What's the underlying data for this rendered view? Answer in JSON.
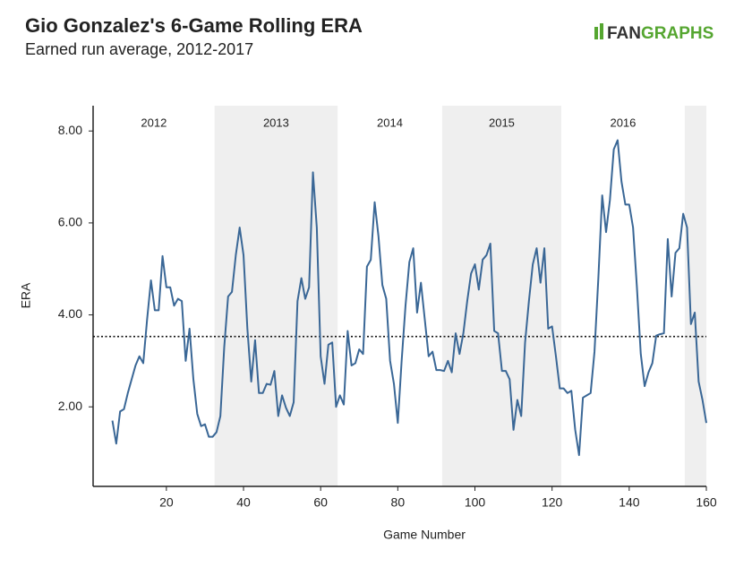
{
  "chart_data": {
    "type": "line",
    "title": "Gio Gonzalez's 6-Game Rolling ERA",
    "subtitle": "Earned run average, 2012-2017",
    "brand": [
      "FAN",
      "GRAPHS"
    ],
    "x_label": "Game Number",
    "y_label": "ERA",
    "color": "#3a6796",
    "xlim": [
      1,
      160
    ],
    "ylim": [
      0.27,
      8.55
    ],
    "xticks": [
      20,
      40,
      60,
      80,
      100,
      120,
      140,
      160
    ],
    "yticks": [
      {
        "value": 2,
        "label": "2.00"
      },
      {
        "value": 4,
        "label": "4.00"
      },
      {
        "value": 6,
        "label": "6.00"
      },
      {
        "value": 8,
        "label": "8.00"
      }
    ],
    "reference_line": 3.53,
    "seasons": [
      {
        "label": "2012",
        "start": 1,
        "end": 32.5,
        "shaded": false
      },
      {
        "label": "2013",
        "start": 32.5,
        "end": 64.4,
        "shaded": true
      },
      {
        "label": "2014",
        "start": 64.4,
        "end": 91.5,
        "shaded": false
      },
      {
        "label": "2015",
        "start": 91.5,
        "end": 122.4,
        "shaded": true
      },
      {
        "label": "2016",
        "start": 122.4,
        "end": 154.4,
        "shaded": false
      },
      {
        "label": null,
        "start": 154.4,
        "end": 160,
        "shaded": true
      }
    ],
    "x": [
      6,
      7,
      8,
      9,
      10,
      11,
      12,
      13,
      14,
      15,
      16,
      17,
      18,
      19,
      20,
      21,
      22,
      23,
      24,
      25,
      26,
      27,
      28,
      29,
      30,
      31,
      32,
      33,
      34,
      35,
      36,
      37,
      38,
      39,
      40,
      41,
      42,
      43,
      44,
      45,
      46,
      47,
      48,
      49,
      50,
      51,
      52,
      53,
      54,
      55,
      56,
      57,
      58,
      59,
      60,
      61,
      62,
      63,
      64,
      65,
      66,
      67,
      68,
      69,
      70,
      71,
      72,
      73,
      74,
      75,
      76,
      77,
      78,
      79,
      80,
      81,
      82,
      83,
      84,
      85,
      86,
      87,
      88,
      89,
      90,
      91,
      92,
      93,
      94,
      95,
      96,
      97,
      98,
      99,
      100,
      101,
      102,
      103,
      104,
      105,
      106,
      107,
      108,
      109,
      110,
      111,
      112,
      113,
      114,
      115,
      116,
      117,
      118,
      119,
      120,
      121,
      122,
      123,
      124,
      125,
      126,
      127,
      128,
      129,
      130,
      131,
      132,
      133,
      134,
      135,
      136,
      137,
      138,
      139,
      140,
      141,
      142,
      143,
      144,
      145,
      146,
      147,
      148,
      149,
      150,
      151,
      152,
      153,
      154,
      155,
      156,
      157,
      158,
      159,
      160
    ],
    "values": [
      1.7,
      1.2,
      1.9,
      1.95,
      2.3,
      2.6,
      2.9,
      3.1,
      2.95,
      3.9,
      4.75,
      4.1,
      4.1,
      5.28,
      4.6,
      4.6,
      4.2,
      4.35,
      4.3,
      3.0,
      3.7,
      2.6,
      1.85,
      1.58,
      1.62,
      1.35,
      1.35,
      1.45,
      1.8,
      3.3,
      4.4,
      4.5,
      5.3,
      5.9,
      5.3,
      3.7,
      2.55,
      3.45,
      2.3,
      2.3,
      2.5,
      2.48,
      2.78,
      1.8,
      2.25,
      1.98,
      1.8,
      2.1,
      4.3,
      4.8,
      4.35,
      4.6,
      7.1,
      5.9,
      3.1,
      2.5,
      3.35,
      3.4,
      2.0,
      2.25,
      2.05,
      3.65,
      2.9,
      2.95,
      3.25,
      3.15,
      5.05,
      5.2,
      6.45,
      5.7,
      4.65,
      4.35,
      3.0,
      2.5,
      1.65,
      3.0,
      4.2,
      5.15,
      5.45,
      4.05,
      4.7,
      3.9,
      3.1,
      3.2,
      2.8,
      2.8,
      2.78,
      3.0,
      2.75,
      3.6,
      3.15,
      3.6,
      4.3,
      4.9,
      5.1,
      4.55,
      5.2,
      5.3,
      5.55,
      3.65,
      3.6,
      2.78,
      2.78,
      2.6,
      1.5,
      2.15,
      1.8,
      3.4,
      4.3,
      5.1,
      5.45,
      4.7,
      5.45,
      3.7,
      3.75,
      3.1,
      2.4,
      2.4,
      2.3,
      2.35,
      1.5,
      0.95,
      2.2,
      2.25,
      2.3,
      3.2,
      4.8,
      6.6,
      5.8,
      6.5,
      7.6,
      7.8,
      6.9,
      6.4,
      6.4,
      5.9,
      4.6,
      3.15,
      2.45,
      2.75,
      2.95,
      3.55,
      3.58,
      3.6,
      5.65,
      4.4,
      5.35,
      5.45,
      6.2,
      5.9,
      3.8,
      4.05,
      2.55,
      2.15,
      1.65
    ]
  }
}
